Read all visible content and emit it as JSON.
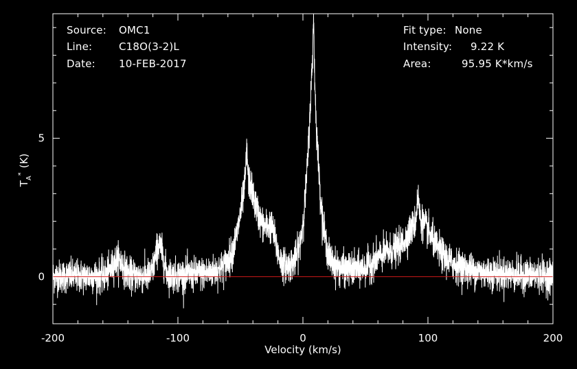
{
  "header": {
    "left": [
      {
        "label": "Source:",
        "value": "OMC1"
      },
      {
        "label": "Line:",
        "value": "C18O(3-2)L"
      },
      {
        "label": "Date:",
        "value": "10-FEB-2017"
      }
    ],
    "right": [
      {
        "label": "Fit type:",
        "value": "None"
      },
      {
        "label": "Intensity:",
        "value": "9.22 K"
      },
      {
        "label": "Area:",
        "value": "95.95 K*km/s"
      }
    ]
  },
  "colors": {
    "background": "#000000",
    "foreground": "#ffffff",
    "baseline": "#d41a1a"
  },
  "chart_data": {
    "type": "line",
    "xlabel": "Velocity (km/s)",
    "ylabel_main": "T",
    "ylabel_sub": "A",
    "ylabel_sup": "*",
    "ylabel_unit": "(K)",
    "xlim": [
      -200,
      200
    ],
    "ylim": [
      -1.7,
      9.5
    ],
    "x_ticks": [
      -200,
      -100,
      0,
      100,
      200
    ],
    "x_tick_labels": [
      "-200",
      "-100",
      "0",
      "100",
      "200"
    ],
    "y_ticks": [
      0,
      5
    ],
    "y_tick_labels": [
      "0",
      "5"
    ],
    "x_minor_step": 20,
    "y_minor_step": 1,
    "baseline": 0,
    "grid": false,
    "noise_rms": 0.3,
    "channel_width_kms": 0.1,
    "components": [
      {
        "kind": "lorentzian",
        "center": 8,
        "amplitude": 5.4,
        "fwhm": 8
      },
      {
        "kind": "gaussian",
        "center": 8,
        "amplitude": 2.0,
        "fwhm": 14
      },
      {
        "kind": "lorentzian",
        "center": -45,
        "amplitude": 2.3,
        "fwhm": 14
      },
      {
        "kind": "gaussian",
        "center": -38,
        "amplitude": 1.4,
        "fwhm": 24
      },
      {
        "kind": "lorentzian",
        "center": 93,
        "amplitude": 2.0,
        "fwhm": 30
      },
      {
        "kind": "gaussian",
        "center": -115,
        "amplitude": 1.1,
        "fwhm": 7
      },
      {
        "kind": "gaussian",
        "center": -148,
        "amplitude": 0.6,
        "fwhm": 10
      },
      {
        "kind": "gaussian",
        "center": -25,
        "amplitude": 0.8,
        "fwhm": 8
      },
      {
        "kind": "gaussian",
        "center": 65,
        "amplitude": 0.35,
        "fwhm": 20
      },
      {
        "kind": "spike",
        "center": 8.5,
        "amplitude": 1.8,
        "fwhm": 1.2
      },
      {
        "kind": "spike",
        "center": -45,
        "amplitude": 1.0,
        "fwhm": 1.5
      },
      {
        "kind": "spike",
        "center": 92,
        "amplitude": 0.9,
        "fwhm": 2
      }
    ]
  }
}
